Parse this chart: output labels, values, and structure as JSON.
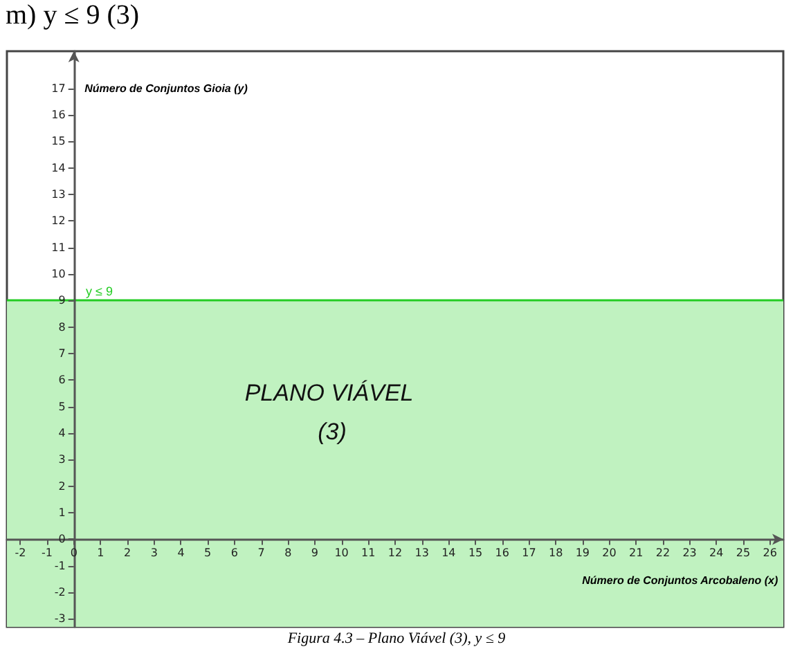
{
  "chart_data": {
    "type": "line",
    "title": "m) y ≤ 9 (3)",
    "xlabel": "Número de Conjuntos Arcobaleno (x)",
    "ylabel": "Número de Conjuntos Gioia (y)",
    "xlim": [
      -2.5,
      26.5
    ],
    "ylim": [
      -3.3,
      18.4
    ],
    "xticks": [
      -2,
      -1,
      0,
      1,
      2,
      3,
      4,
      5,
      6,
      7,
      8,
      9,
      10,
      11,
      12,
      13,
      14,
      15,
      16,
      17,
      18,
      19,
      20,
      21,
      22,
      23,
      24,
      25,
      26
    ],
    "yticks": [
      -3,
      -2,
      -1,
      0,
      1,
      2,
      3,
      4,
      5,
      6,
      7,
      8,
      9,
      10,
      11,
      12,
      13,
      14,
      15,
      16,
      17
    ],
    "grid": false,
    "bands": [
      {
        "axis": "y",
        "from": -3.3,
        "to": 9,
        "color": "#c0f2c0"
      }
    ],
    "ref_lines": [
      {
        "axis": "y",
        "value": 9,
        "label": "y ≤ 9",
        "color": "#22cc22",
        "line_style": "solid"
      }
    ],
    "annotations": [
      "PLANO VIÁVEL (3)",
      "Figura 4.3 – Plano Viável (3), y ≤ 9"
    ]
  }
}
